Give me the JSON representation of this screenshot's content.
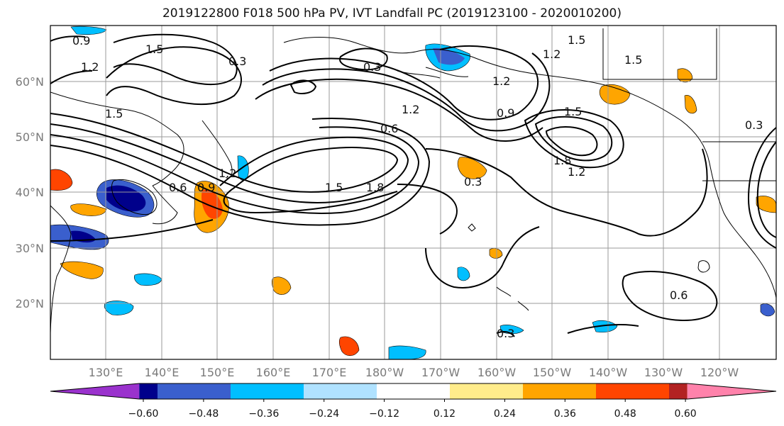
{
  "title": "2019122800 F018 500 hPa PV, IVT Landfall PC (2019123100 - 2020010200)",
  "map": {
    "lat_labels": [
      "60°N",
      "50°N",
      "40°N",
      "30°N",
      "20°N"
    ],
    "lon_labels": [
      "130°E",
      "140°E",
      "150°E",
      "160°E",
      "170°E",
      "180°W",
      "170°W",
      "160°W",
      "150°W",
      "140°W",
      "130°W",
      "120°W"
    ],
    "contour_labels": [
      "0.9",
      "1.2",
      "1.5",
      "0.3",
      "0.3",
      "1.2",
      "1.5",
      "1.2",
      "1.5",
      "1.5",
      "0.6",
      "1.2",
      "0.9",
      "1.5",
      "1.8",
      "1.2",
      "0.6",
      "0.9",
      "1.2",
      "1.5",
      "1.8",
      "0.3",
      "0.6",
      "0.3",
      "0.3"
    ]
  },
  "colorbar": {
    "ticks": [
      "−0.60",
      "−0.48",
      "−0.36",
      "−0.24",
      "−0.12",
      "0.12",
      "0.24",
      "0.36",
      "0.48",
      "0.60"
    ],
    "colors": [
      "#9a32cd",
      "#00008b",
      "#3a5fcd",
      "#00bfff",
      "#b0e2ff",
      "#ffffff",
      "#ffec8b",
      "#ffa500",
      "#ff4500",
      "#b22222",
      "#ff82ab"
    ]
  }
}
